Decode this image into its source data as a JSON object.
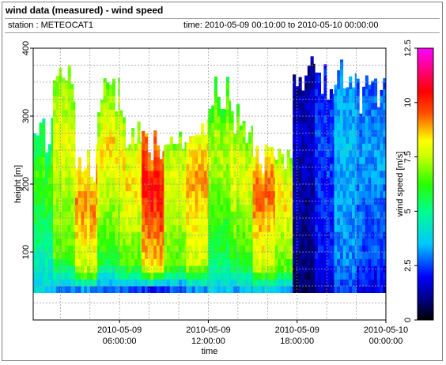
{
  "header": {
    "title": "wind data (measured) - wind speed",
    "station": "station : METEOCAT1",
    "time_range": "time: 2010-05-09 00:10:00 to 2010-05-10 00:00:00"
  },
  "chart_data": {
    "type": "heatmap",
    "xlabel": "time",
    "ylabel": "height [m]",
    "x_ticks": [
      {
        "hours": 6,
        "line1": "2010-05-09",
        "line2": "06:00:00"
      },
      {
        "hours": 12,
        "line1": "2010-05-09",
        "line2": "12:00:00"
      },
      {
        "hours": 18,
        "line1": "2010-05-09",
        "line2": "18:00:00"
      },
      {
        "hours": 24,
        "line1": "2010-05-10",
        "line2": "00:00:00"
      }
    ],
    "x_range_hours": [
      0.1667,
      24
    ],
    "y_ticks": [
      100,
      200,
      300,
      400
    ],
    "ylim": [
      0,
      400
    ],
    "colorbar": {
      "label": "wind speed [m/s]",
      "ticks": [
        0,
        2.5,
        5,
        7.5,
        10,
        12.5
      ],
      "range": [
        0,
        12.5
      ]
    },
    "columns": [
      {
        "from_h": 0.17,
        "to_h": 1.5,
        "top_m": 275,
        "speed_low": 3.8,
        "speed_mid": 4.5,
        "speed_high": 6.5
      },
      {
        "from_h": 1.5,
        "to_h": 3.0,
        "top_m": 350,
        "speed_low": 3.2,
        "speed_mid": 6.5,
        "speed_high": 8.0
      },
      {
        "from_h": 3.0,
        "to_h": 4.5,
        "top_m": 230,
        "speed_low": 3.2,
        "speed_mid": 7.5,
        "speed_high": 9.2
      },
      {
        "from_h": 4.5,
        "to_h": 6.0,
        "top_m": 330,
        "speed_low": 2.8,
        "speed_mid": 6.0,
        "speed_high": 8.5
      },
      {
        "from_h": 6.0,
        "to_h": 7.5,
        "top_m": 280,
        "speed_low": 2.6,
        "speed_mid": 6.5,
        "speed_high": 8.5
      },
      {
        "from_h": 7.5,
        "to_h": 9.0,
        "top_m": 260,
        "speed_low": 2.2,
        "speed_mid": 8.5,
        "speed_high": 10.5
      },
      {
        "from_h": 9.0,
        "to_h": 10.5,
        "top_m": 280,
        "speed_low": 2.5,
        "speed_mid": 6.5,
        "speed_high": 8.0
      },
      {
        "from_h": 10.5,
        "to_h": 12.0,
        "top_m": 280,
        "speed_low": 3.0,
        "speed_mid": 7.5,
        "speed_high": 9.0
      },
      {
        "from_h": 12.0,
        "to_h": 13.5,
        "top_m": 340,
        "speed_low": 3.6,
        "speed_mid": 5.5,
        "speed_high": 7.5
      },
      {
        "from_h": 13.5,
        "to_h": 15.0,
        "top_m": 290,
        "speed_low": 3.4,
        "speed_mid": 6.0,
        "speed_high": 8.0
      },
      {
        "from_h": 15.0,
        "to_h": 16.5,
        "top_m": 230,
        "speed_low": 3.8,
        "speed_mid": 7.5,
        "speed_high": 9.5
      },
      {
        "from_h": 16.5,
        "to_h": 17.7,
        "top_m": 230,
        "speed_low": 3.5,
        "speed_mid": 6.5,
        "speed_high": 8.5
      },
      {
        "from_h": 17.7,
        "to_h": 19.2,
        "top_m": 365,
        "speed_low": 0.6,
        "speed_mid": 1.0,
        "speed_high": 1.5
      },
      {
        "from_h": 19.2,
        "to_h": 20.5,
        "top_m": 350,
        "speed_low": 1.5,
        "speed_mid": 2.0,
        "speed_high": 2.5
      },
      {
        "from_h": 20.5,
        "to_h": 22.0,
        "top_m": 360,
        "speed_low": 2.5,
        "speed_mid": 3.0,
        "speed_high": 3.5
      },
      {
        "from_h": 22.0,
        "to_h": 24.0,
        "top_m": 330,
        "speed_low": 1.8,
        "speed_mid": 2.5,
        "speed_high": 3.2
      }
    ],
    "data_bottom_m": 40
  }
}
